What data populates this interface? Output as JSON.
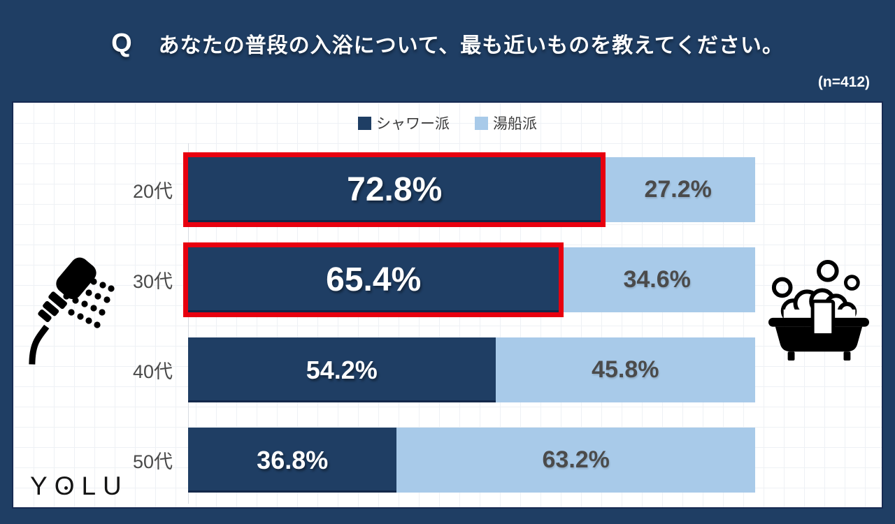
{
  "header": {
    "q_label": "Q",
    "title": "あなたの普段の入浴について、最も近いものを教えてください。",
    "sample_size": "(n=412)"
  },
  "legend": {
    "items": [
      {
        "label": "シャワー派",
        "color": "#1f3e64"
      },
      {
        "label": "湯船派",
        "color": "#a8cae9"
      }
    ]
  },
  "chart_data": {
    "type": "bar",
    "orientation": "horizontal",
    "stacked": true,
    "title": "あなたの普段の入浴について、最も近いものを教えてください。",
    "sample_size": 412,
    "categories": [
      "20代",
      "30代",
      "40代",
      "50代"
    ],
    "series": [
      {
        "name": "シャワー派",
        "color": "#1f3e64",
        "values": [
          72.8,
          65.4,
          54.2,
          36.8
        ]
      },
      {
        "name": "湯船派",
        "color": "#a8cae9",
        "values": [
          27.2,
          34.6,
          45.8,
          63.2
        ]
      }
    ],
    "unit": "%",
    "xlim": [
      0,
      100
    ],
    "legend_position": "top",
    "grid": true,
    "highlighted_categories": [
      "20代",
      "30代"
    ],
    "highlight_color": "#e8000f"
  },
  "rows": [
    {
      "label": "20代",
      "shower": "72.8%",
      "bath": "27.2%",
      "highlighted": true
    },
    {
      "label": "30代",
      "shower": "65.4%",
      "bath": "34.6%",
      "highlighted": true
    },
    {
      "label": "40代",
      "shower": "54.2%",
      "bath": "45.8%",
      "highlighted": false
    },
    {
      "label": "50代",
      "shower": "36.8%",
      "bath": "63.2%",
      "highlighted": false
    }
  ],
  "branding": {
    "logo_text": "YOLU",
    "letters": [
      "Y",
      "O",
      "L",
      "U"
    ]
  },
  "icons": {
    "left": "shower-head-icon",
    "right": "bathtub-icon"
  }
}
